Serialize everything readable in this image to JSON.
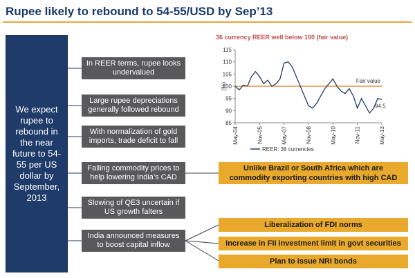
{
  "title": "Rupee likely to rebound to 54-55/USD by Sep’13",
  "main_message": "We expect rupee to rebound in the near future to 54-55 per US dollar by September, 2013",
  "reasons": [
    "In REER terms, rupee looks undervalued",
    "Large rupee depreciations generally followed rebound",
    "With normalization of gold imports, trade deficit to fall",
    "Falling commodity prices to help lowering India’s CAD",
    "Slowing of QE3 uncertain if US growth falters",
    "India announced measures to boost capital inflow"
  ],
  "commodity_note": "Unlike Brazil or South Africa which are commodity exporting countries with high CAD",
  "capital_measures": [
    "Liberalization of FDI norms",
    "Increase in FII investment limit in govt securities",
    "Plan to issue NRI bonds"
  ],
  "colors": {
    "title": "#1a3a6c",
    "navy_box": "#1f3b69",
    "gray_box": "#59595b",
    "orange_box": "#e9a92c",
    "chart_title": "#c0504d",
    "series_line": "#1f3b69",
    "fair_value_line": "#e07b1a"
  },
  "chart_data": {
    "type": "line",
    "title": "36 currency REER well below 100 (fair value)",
    "ylabel": "(%)",
    "ylim": [
      85,
      115
    ],
    "yticks": [
      85,
      90,
      95,
      100,
      105,
      110,
      115
    ],
    "xticks": [
      "May-04",
      "Nov-05",
      "May-07",
      "Nov-08",
      "May-10",
      "Nov-11",
      "May-13"
    ],
    "fair_value": 100,
    "fair_value_label": "Fair value",
    "end_label": "94.5",
    "legend": "REER: 36 currencies",
    "series": [
      {
        "name": "REER: 36 currencies",
        "x": [
          "May-04",
          "Aug-04",
          "Nov-04",
          "Feb-05",
          "May-05",
          "Aug-05",
          "Nov-05",
          "Feb-06",
          "May-06",
          "Aug-06",
          "Nov-06",
          "Feb-07",
          "May-07",
          "Aug-07",
          "Nov-07",
          "Feb-08",
          "May-08",
          "Aug-08",
          "Nov-08",
          "Feb-09",
          "May-09",
          "Aug-09",
          "Nov-09",
          "Feb-10",
          "May-10",
          "Aug-10",
          "Nov-10",
          "Feb-11",
          "May-11",
          "Aug-11",
          "Nov-11",
          "Feb-12",
          "May-12",
          "Aug-12",
          "Nov-12",
          "Feb-13",
          "May-13"
        ],
        "values": [
          100,
          98.5,
          100.5,
          100,
          104,
          106,
          104,
          101,
          102.5,
          100,
          101,
          103,
          109.5,
          110,
          108,
          104,
          100,
          96,
          92,
          91,
          93,
          96,
          99,
          101,
          103,
          100,
          98,
          97,
          99,
          96,
          91,
          95,
          92,
          89,
          91,
          95,
          94.5
        ]
      }
    ]
  }
}
